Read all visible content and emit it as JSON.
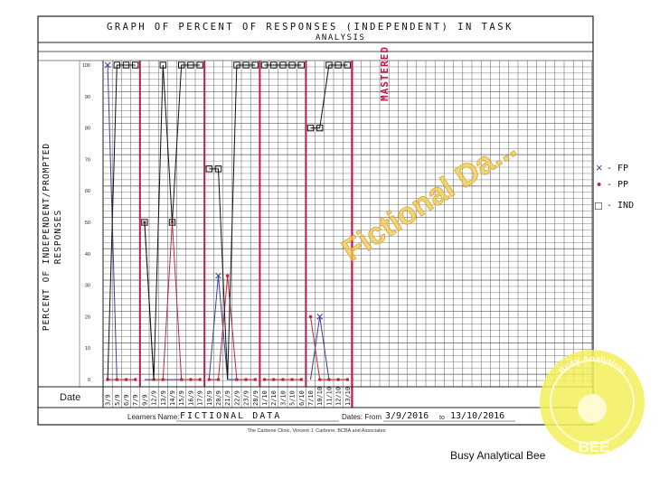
{
  "sheet": {
    "title_line1": "GRAPH OF PERCENT OF RESPONSES (INDEPENDENT) IN TASK",
    "title_line2": "ANALYSIS",
    "y_label_line1": "PERCENT OF INDEPENDENT/PROMPTED",
    "y_label_line2": "RESPONSES",
    "date_label": "Date",
    "learner_label": "Learners Name:",
    "learner_value": "FICTIONAL DATA",
    "dates_label": "Dates: From",
    "dates_from": "3/9/2016",
    "dates_to_label": "to",
    "dates_to": "13/10/2016",
    "footer": "The Carbone Clinic, Vincent J. Carbone, BCBA and Associates",
    "mastered_label": "MASTERED",
    "watermark": "Fictional Da..."
  },
  "legend": {
    "fp": {
      "symbol": "×",
      "label": "- FP"
    },
    "pp": {
      "symbol": "•",
      "label": "- PP"
    },
    "ind": {
      "symbol": "□",
      "label": "- IND"
    }
  },
  "badge": {
    "text_arc": "Busy Analytical",
    "text_main": "BEE"
  },
  "caption": "Busy Analytical Bee",
  "colors": {
    "fp": "#3a3f9a",
    "pp": "#c0283a",
    "ind": "#111111",
    "phase_line": "#c0184a",
    "grid": "#5a5a5a",
    "badge": "#f3ef5a"
  },
  "chart_data": {
    "type": "line",
    "ylim": [
      0,
      100
    ],
    "y_ticks": [
      0,
      10,
      20,
      30,
      40,
      50,
      60,
      70,
      80,
      90,
      100
    ],
    "categories": [
      "3/9",
      "5/9",
      "6/9",
      "7/9",
      "9/9",
      "12/9",
      "13/9",
      "14/9",
      "15/9",
      "16/9",
      "17/9",
      "19/9",
      "20/9",
      "21/9",
      "22/9",
      "23/9",
      "28/9",
      "1/10",
      "2/10",
      "3/10",
      "5/10",
      "6/10",
      "7/10",
      "10/10",
      "11/10",
      "12/10",
      "13/10"
    ],
    "phase_changes_after_index": [
      3,
      10,
      16,
      21
    ],
    "mastered_after_index": 26,
    "series": [
      {
        "name": "FP",
        "segments": [
          [
            0,
            100
          ],
          [
            1,
            0
          ],
          [
            2,
            0
          ],
          [
            3,
            0
          ]
        ],
        "all": [
          100,
          0,
          0,
          0,
          0,
          0,
          0,
          0,
          0,
          0,
          0,
          0,
          33,
          0,
          0,
          0,
          0,
          0,
          0,
          0,
          0,
          0,
          0,
          20,
          0,
          0,
          0
        ]
      },
      {
        "name": "PP",
        "all": [
          0,
          0,
          0,
          0,
          50,
          0,
          0,
          50,
          0,
          0,
          0,
          0,
          0,
          33,
          0,
          0,
          0,
          0,
          0,
          0,
          0,
          0,
          20,
          0,
          0,
          0,
          0
        ]
      },
      {
        "name": "IND",
        "all": [
          0,
          100,
          100,
          100,
          50,
          0,
          100,
          50,
          100,
          100,
          100,
          67,
          67,
          0,
          100,
          100,
          100,
          100,
          100,
          100,
          100,
          100,
          80,
          80,
          100,
          100,
          100
        ]
      }
    ]
  }
}
